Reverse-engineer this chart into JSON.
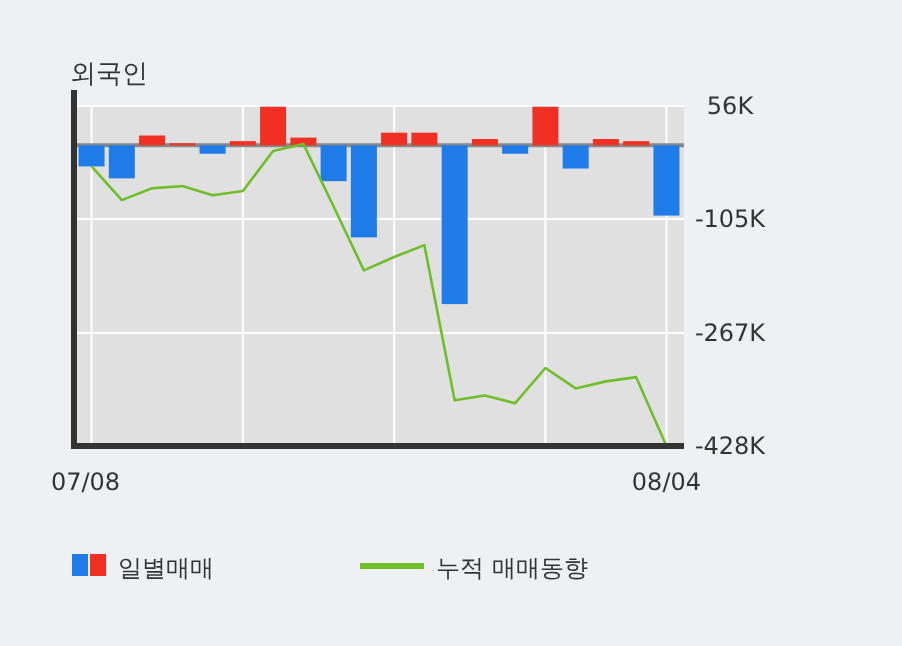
{
  "chart_data": {
    "type": "bar",
    "title": "외국인",
    "categories": [
      "07/08",
      null,
      null,
      null,
      null,
      null,
      null,
      null,
      null,
      null,
      null,
      null,
      null,
      null,
      null,
      null,
      null,
      null,
      null,
      "08/04"
    ],
    "series": [
      {
        "name": "일별매매",
        "colors": [
          "#1e7be8",
          "#1e7be8",
          "#f03023",
          "#f03023",
          "#1e7be8",
          "#f03023",
          "#f03023",
          "#f03023",
          "#1e7be8",
          "#1e7be8",
          "#f03023",
          "#f03023",
          "#1e7be8",
          "#f03023",
          "#1e7be8",
          "#f03023",
          "#1e7be8",
          "#f03023",
          "#f03023",
          "#1e7be8"
        ],
        "values": [
          -30000,
          -47000,
          14000,
          3000,
          -12000,
          6000,
          55000,
          11000,
          -51000,
          -131000,
          18000,
          18000,
          -226000,
          9000,
          -12000,
          55000,
          -33000,
          9000,
          6000,
          -100000
        ]
      },
      {
        "name": "누적 매매동향",
        "type": "line",
        "color": "#6fbe2b",
        "values": [
          -30000,
          -78000,
          -61000,
          -58000,
          -71000,
          -65000,
          -8000,
          2000,
          -87000,
          -178000,
          -159000,
          -142000,
          -363000,
          -356000,
          -367000,
          -317000,
          -346000,
          -336000,
          -330000,
          -428000
        ]
      }
    ],
    "ylim": [
      -428000,
      56000
    ],
    "yticks": [
      {
        "value": 56000,
        "label": "56K"
      },
      {
        "value": -105000,
        "label": "-105K"
      },
      {
        "value": -267000,
        "label": "-267K"
      },
      {
        "value": -428000,
        "label": "-428K"
      }
    ],
    "grid": true,
    "legend": "bottom"
  }
}
